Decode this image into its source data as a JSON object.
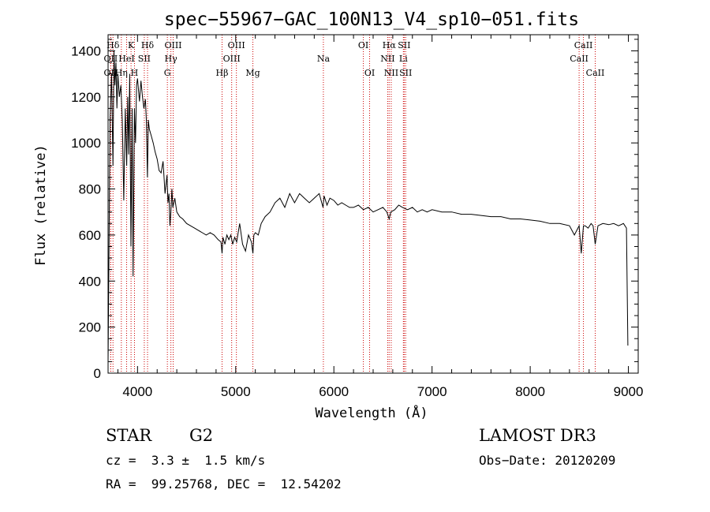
{
  "chart_data": {
    "type": "line",
    "title": "spec−55967−GAC_100N13_V4_sp10−051.fits",
    "xlabel": "Wavelength (Å)",
    "ylabel": "Flux (relative)",
    "xlim": [
      3700,
      9100
    ],
    "ylim": [
      0,
      1470
    ],
    "x_ticks": [
      4000,
      5000,
      6000,
      7000,
      8000,
      9000
    ],
    "y_ticks": [
      0,
      200,
      400,
      600,
      800,
      1000,
      1200,
      1400
    ],
    "x_tick_labels": [
      "4000",
      "5000",
      "6000",
      "7000",
      "8000",
      "9000"
    ],
    "y_tick_labels": [
      "0",
      "200",
      "400",
      "600",
      "800",
      "1000",
      "1200",
      "1400"
    ],
    "line_color": "#000000",
    "marker_color": "#cc0000",
    "series": [
      {
        "name": "spectrum",
        "x": [
          3700,
          3720,
          3735,
          3750,
          3760,
          3770,
          3780,
          3790,
          3800,
          3815,
          3830,
          3845,
          3860,
          3875,
          3890,
          3900,
          3910,
          3920,
          3933,
          3945,
          3955,
          3968,
          3980,
          3990,
          4000,
          4020,
          4035,
          4050,
          4065,
          4080,
          4090,
          4101,
          4110,
          4120,
          4140,
          4160,
          4180,
          4200,
          4220,
          4240,
          4260,
          4280,
          4300,
          4310,
          4320,
          4330,
          4340,
          4350,
          4360,
          4380,
          4400,
          4430,
          4460,
          4500,
          4540,
          4580,
          4620,
          4660,
          4700,
          4740,
          4780,
          4820,
          4850,
          4861,
          4870,
          4890,
          4910,
          4930,
          4950,
          4970,
          4990,
          5010,
          5040,
          5070,
          5100,
          5130,
          5160,
          5175,
          5185,
          5200,
          5230,
          5260,
          5300,
          5350,
          5400,
          5450,
          5500,
          5550,
          5600,
          5650,
          5700,
          5750,
          5800,
          5850,
          5890,
          5900,
          5930,
          5960,
          6000,
          6040,
          6080,
          6120,
          6160,
          6200,
          6250,
          6300,
          6350,
          6400,
          6450,
          6500,
          6540,
          6563,
          6580,
          6620,
          6660,
          6700,
          6750,
          6800,
          6850,
          6900,
          6950,
          7000,
          7100,
          7200,
          7300,
          7400,
          7500,
          7600,
          7700,
          7800,
          7900,
          8000,
          8100,
          8200,
          8300,
          8400,
          8450,
          8498,
          8520,
          8542,
          8560,
          8590,
          8620,
          8640,
          8662,
          8690,
          8740,
          8800,
          8850,
          8900,
          8950,
          8980,
          8995
        ],
        "y": [
          50,
          1100,
          1300,
          900,
          1400,
          1250,
          1350,
          1150,
          1300,
          1200,
          1250,
          1100,
          750,
          1150,
          900,
          1200,
          950,
          1300,
          550,
          1150,
          420,
          1150,
          1000,
          1250,
          1280,
          1180,
          1270,
          1200,
          1150,
          1190,
          1100,
          850,
          1100,
          1060,
          1030,
          1000,
          960,
          930,
          880,
          870,
          920,
          780,
          860,
          740,
          780,
          640,
          700,
          800,
          720,
          760,
          700,
          680,
          670,
          650,
          640,
          630,
          620,
          610,
          600,
          610,
          600,
          580,
          570,
          520,
          590,
          560,
          600,
          580,
          600,
          560,
          590,
          570,
          650,
          560,
          530,
          600,
          570,
          520,
          600,
          610,
          600,
          650,
          680,
          700,
          740,
          760,
          720,
          780,
          740,
          780,
          760,
          740,
          760,
          780,
          720,
          770,
          730,
          760,
          750,
          730,
          740,
          730,
          720,
          720,
          730,
          710,
          720,
          700,
          710,
          720,
          700,
          670,
          700,
          710,
          730,
          720,
          710,
          720,
          700,
          710,
          700,
          710,
          700,
          700,
          690,
          690,
          685,
          680,
          680,
          670,
          670,
          665,
          660,
          650,
          650,
          640,
          600,
          640,
          520,
          640,
          640,
          630,
          650,
          640,
          560,
          640,
          650,
          645,
          650,
          640,
          650,
          630,
          120
        ]
      }
    ],
    "spectral_lines": [
      {
        "name": "Hδ",
        "wl": 3750,
        "row": 1
      },
      {
        "name": "OII",
        "wl": 3727,
        "row": 2
      },
      {
        "name": "OII",
        "wl": 3727,
        "row": 3
      },
      {
        "name": "Hη",
        "wl": 3835,
        "row": 3
      },
      {
        "name": "HeI",
        "wl": 3889,
        "row": 2
      },
      {
        "name": "K",
        "wl": 3934,
        "row": 1
      },
      {
        "name": "H",
        "wl": 3969,
        "row": 3
      },
      {
        "name": "SII",
        "wl": 4069,
        "row": 2
      },
      {
        "name": "Hδ",
        "wl": 4102,
        "row": 1
      },
      {
        "name": "OIII",
        "wl": 4363,
        "row": 1
      },
      {
        "name": "Hγ",
        "wl": 4340,
        "row": 2
      },
      {
        "name": "G",
        "wl": 4304,
        "row": 3
      },
      {
        "name": "Hβ",
        "wl": 4861,
        "row": 3
      },
      {
        "name": "OIII",
        "wl": 4959,
        "row": 2
      },
      {
        "name": "OIII",
        "wl": 5007,
        "row": 1
      },
      {
        "name": "Mg",
        "wl": 5175,
        "row": 3
      },
      {
        "name": "Na",
        "wl": 5893,
        "row": 2
      },
      {
        "name": "OI",
        "wl": 6300,
        "row": 1
      },
      {
        "name": "OI",
        "wl": 6364,
        "row": 3
      },
      {
        "name": "Hα",
        "wl": 6563,
        "row": 1
      },
      {
        "name": "NII",
        "wl": 6548,
        "row": 2
      },
      {
        "name": "NII",
        "wl": 6584,
        "row": 3
      },
      {
        "name": "SII",
        "wl": 6716,
        "row": 1
      },
      {
        "name": "Li",
        "wl": 6708,
        "row": 2
      },
      {
        "name": "SII",
        "wl": 6731,
        "row": 3
      },
      {
        "name": "CaII",
        "wl": 8542,
        "row": 1
      },
      {
        "name": "CaII",
        "wl": 8498,
        "row": 2
      },
      {
        "name": "CaII",
        "wl": 8662,
        "row": 3
      }
    ]
  },
  "info": {
    "object_class": "STAR",
    "subclass": "G2",
    "survey": "LAMOST DR3",
    "redshift": "cz =  3.3 ±  1.5 km/s",
    "obs_date": "Obs−Date: 20120209",
    "coords": "RA =  99.25768, DEC =  12.54202"
  }
}
